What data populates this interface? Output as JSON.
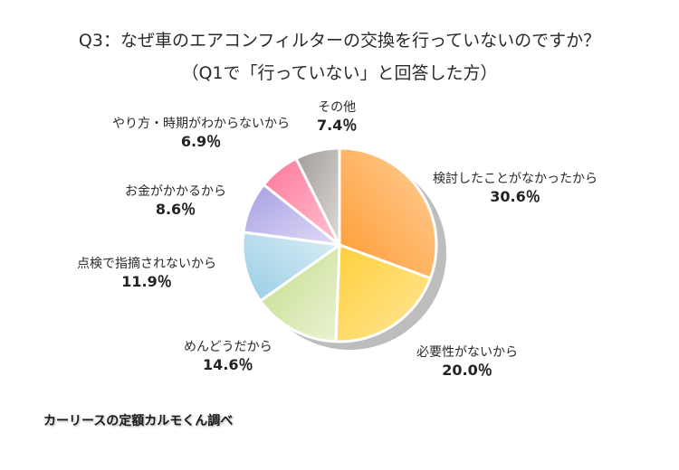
{
  "title": {
    "line1": "Q3：なぜ車のエアコンフィルターの交換を行っていないのですか？",
    "line2": "（Q1で「行っていない」と回答した方）"
  },
  "labels": [
    {
      "name": "検討したことがなかったから",
      "pct": "30.6％"
    },
    {
      "name": "必要性がないから",
      "pct": "20.0％"
    },
    {
      "name": "めんどうだから",
      "pct": "14.6％"
    },
    {
      "name": "点検で指摘されないから",
      "pct": "11.9％"
    },
    {
      "name": "お金がかかるから",
      "pct": "8.6％"
    },
    {
      "name": "やり方・時期がわからないから",
      "pct": "6.9％"
    },
    {
      "name": "その他",
      "pct": "7.4％"
    }
  ],
  "source": "カーリースの定額カルモくん調べ",
  "chart_data": {
    "type": "pie",
    "title": "Q3：なぜ車のエアコンフィルターの交換を行っていないのですか？",
    "subtitle": "（Q1で「行っていない」と回答した方）",
    "categories": [
      "検討したことがなかったから",
      "必要性がないから",
      "めんどうだから",
      "点検で指摘されないから",
      "お金がかかるから",
      "やり方・時期がわからないから",
      "その他"
    ],
    "values": [
      30.6,
      20.0,
      14.6,
      11.9,
      8.6,
      6.9,
      7.4
    ],
    "colors": [
      "#ffa64d",
      "#ffd54f",
      "#cfe3a0",
      "#a9d6e8",
      "#b0a8e6",
      "#ff8aa8",
      "#b5aeaa"
    ],
    "unit": "%",
    "start_angle": "12 o'clock, clockwise",
    "annotation": "カーリースの定額カルモくん調べ"
  }
}
